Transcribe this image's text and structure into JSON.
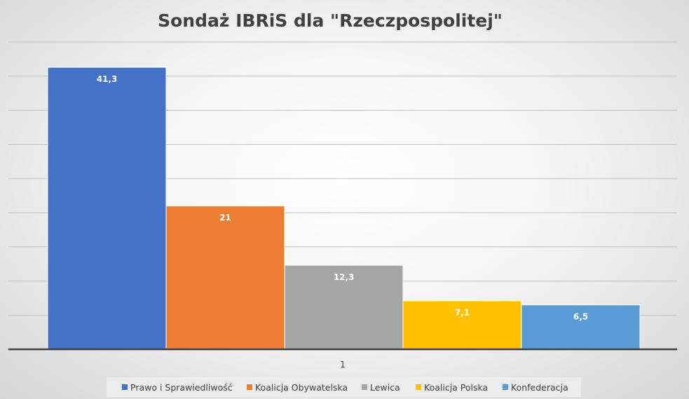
{
  "chart_data": {
    "type": "bar",
    "title": "Sondaż IBRiS dla \"Rzeczpospolitej\"",
    "categories": [
      "1"
    ],
    "xlabel": "",
    "ylabel": "",
    "ylim": [
      0,
      45
    ],
    "grid": true,
    "legend_position": "bottom",
    "series": [
      {
        "name": "Prawo i Sprawiedliwość",
        "values": [
          41.3
        ],
        "label": "41,3",
        "color": "#4472c4"
      },
      {
        "name": "Koalicja Obywatelska",
        "values": [
          21
        ],
        "label": "21",
        "color": "#ed7d31"
      },
      {
        "name": "Lewica",
        "values": [
          12.3
        ],
        "label": "12,3",
        "color": "#a5a5a5"
      },
      {
        "name": "Koalicja Polska",
        "values": [
          7.1
        ],
        "label": "7,1",
        "color": "#ffc000"
      },
      {
        "name": "Konfederacja",
        "values": [
          6.5
        ],
        "label": "6,5",
        "color": "#5b9bd5"
      }
    ]
  }
}
